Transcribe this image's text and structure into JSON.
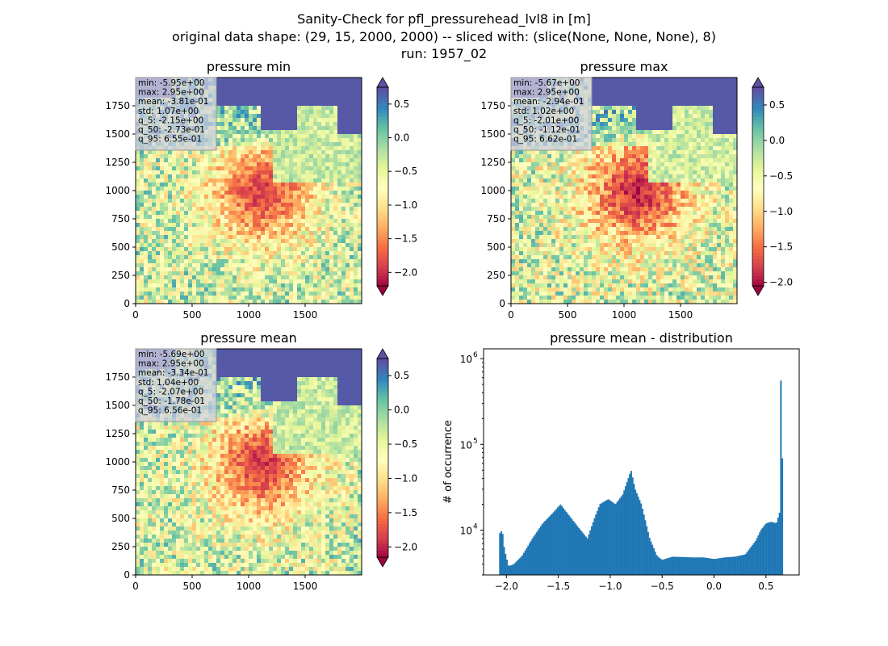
{
  "figure": {
    "title_lines": [
      "Sanity-Check for pfl_pressurehead_lvl8 in [m]",
      "original data shape: (29, 15, 2000, 2000) -- sliced with: (slice(None, None, None), 8)",
      "run: 1957_02"
    ]
  },
  "colors": {
    "colormap": [
      "#9e0142",
      "#d53e4f",
      "#f46d43",
      "#fdae61",
      "#fee08b",
      "#ffffbf",
      "#e6f598",
      "#abdda4",
      "#66c2a5",
      "#3288bd",
      "#5e4fa2"
    ],
    "hist_bar": "#1f77b4"
  },
  "chart_data": [
    {
      "type": "heatmap",
      "title": "pressure min",
      "x_ticks": [
        "0",
        "500",
        "1000",
        "1500"
      ],
      "y_ticks": [
        "0",
        "250",
        "500",
        "750",
        "1000",
        "1250",
        "1500",
        "1750"
      ],
      "xlim": [
        0,
        2000
      ],
      "ylim": [
        0,
        2000
      ],
      "colorbar": {
        "vmin": -2.2,
        "vmax": 0.75,
        "ticks": [
          "0.5",
          "0.0",
          "−0.5",
          "−1.0",
          "−1.5",
          "−2.0"
        ],
        "tick_values": [
          0.5,
          0.0,
          -0.5,
          -1.0,
          -1.5,
          -2.0
        ]
      },
      "stats": [
        "min: -5.95e+00",
        "max: 2.95e+00",
        "mean: -3.81e-01",
        "std: 1.07e+00",
        "q_5: -2.15e+00",
        "q_50: -2.73e-01",
        "q_95: 6.55e-01"
      ]
    },
    {
      "type": "heatmap",
      "title": "pressure max",
      "x_ticks": [
        "0",
        "500",
        "1000",
        "1500"
      ],
      "y_ticks": [
        "0",
        "250",
        "500",
        "750",
        "1000",
        "1250",
        "1500",
        "1750"
      ],
      "xlim": [
        0,
        2000
      ],
      "ylim": [
        0,
        2000
      ],
      "colorbar": {
        "vmin": -2.05,
        "vmax": 0.75,
        "ticks": [
          "0.5",
          "0.0",
          "−0.5",
          "−1.0",
          "−1.5",
          "−2.0"
        ],
        "tick_values": [
          0.5,
          0.0,
          -0.5,
          -1.0,
          -1.5,
          -2.0
        ]
      },
      "stats": [
        "min: -5.67e+00",
        "max: 2.95e+00",
        "mean: -2.94e-01",
        "std: 1.02e+00",
        "q_5: -2.01e+00",
        "q_50: -1.12e-01",
        "q_95: 6.62e-01"
      ]
    },
    {
      "type": "heatmap",
      "title": "pressure mean",
      "x_ticks": [
        "0",
        "500",
        "1000",
        "1500"
      ],
      "y_ticks": [
        "0",
        "250",
        "500",
        "750",
        "1000",
        "1250",
        "1500",
        "1750"
      ],
      "xlim": [
        0,
        2000
      ],
      "ylim": [
        0,
        2000
      ],
      "colorbar": {
        "vmin": -2.15,
        "vmax": 0.75,
        "ticks": [
          "0.5",
          "0.0",
          "−0.5",
          "−1.0",
          "−1.5",
          "−2.0"
        ],
        "tick_values": [
          0.5,
          0.0,
          -0.5,
          -1.0,
          -1.5,
          -2.0
        ]
      },
      "stats": [
        "min: -5.69e+00",
        "max: 2.95e+00",
        "mean: -3.34e-01",
        "std: 1.04e+00",
        "q_5: -2.07e+00",
        "q_50: -1.78e-01",
        "q_95: 6.56e-01"
      ]
    },
    {
      "type": "bar",
      "title": "pressure mean - distribution",
      "ylabel": "# of occurrence",
      "xlabel": "",
      "yscale": "log",
      "xlim": [
        -2.22,
        0.82
      ],
      "ylim": [
        3000,
        1300000
      ],
      "x_ticks": [
        "−2.0",
        "−1.5",
        "−1.0",
        "−0.5",
        "0.0",
        "0.5"
      ],
      "x_tick_values": [
        -2.0,
        -1.5,
        -1.0,
        -0.5,
        0.0,
        0.5
      ],
      "y_ticks": [
        {
          "label": "10",
          "exp": "4",
          "value": 10000
        },
        {
          "label": "10",
          "exp": "5",
          "value": 100000
        },
        {
          "label": "10",
          "exp": "6",
          "value": 1000000
        }
      ],
      "bin_start": -2.07,
      "bin_width": 0.0136,
      "profile": [
        [
          -2.07,
          9000
        ],
        [
          -2.04,
          10000
        ],
        [
          -2.02,
          6000
        ],
        [
          -1.98,
          3800
        ],
        [
          -1.93,
          4000
        ],
        [
          -1.85,
          5000
        ],
        [
          -1.75,
          8000
        ],
        [
          -1.65,
          12000
        ],
        [
          -1.55,
          16000
        ],
        [
          -1.48,
          20000
        ],
        [
          -1.4,
          15000
        ],
        [
          -1.3,
          10500
        ],
        [
          -1.22,
          8000
        ],
        [
          -1.15,
          14000
        ],
        [
          -1.1,
          20000
        ],
        [
          -1.02,
          23000
        ],
        [
          -0.95,
          20000
        ],
        [
          -0.88,
          26000
        ],
        [
          -0.8,
          50000
        ],
        [
          -0.76,
          30000
        ],
        [
          -0.7,
          20000
        ],
        [
          -0.62,
          8000
        ],
        [
          -0.55,
          5000
        ],
        [
          -0.5,
          4500
        ],
        [
          -0.4,
          4900
        ],
        [
          -0.2,
          4800
        ],
        [
          -0.1,
          4800
        ],
        [
          0.0,
          4600
        ],
        [
          0.1,
          4800
        ],
        [
          0.2,
          4900
        ],
        [
          0.3,
          5200
        ],
        [
          0.4,
          7500
        ],
        [
          0.45,
          10000
        ],
        [
          0.5,
          12000
        ],
        [
          0.55,
          12500
        ],
        [
          0.6,
          12000
        ],
        [
          0.63,
          16000
        ],
        [
          0.645,
          900000
        ],
        [
          0.655,
          400000
        ],
        [
          0.66,
          3000
        ]
      ]
    }
  ]
}
